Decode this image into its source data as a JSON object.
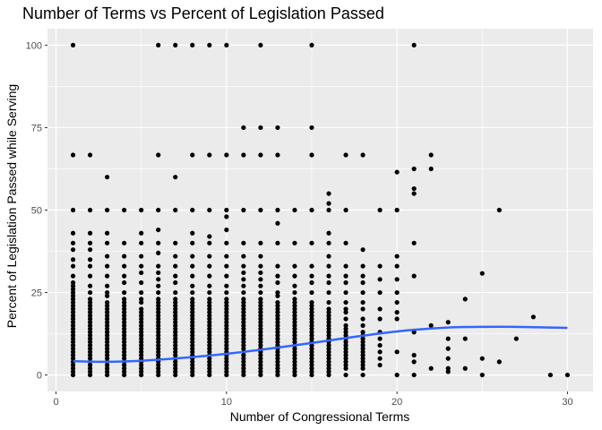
{
  "chart_data": {
    "type": "scatter",
    "title": "Number of Terms vs Percent of Legislation Passed",
    "xlabel": "Number of Congressional Terms",
    "ylabel": "Percent of Legislation Passed while Serving",
    "xlim": [
      -0.5,
      31.5
    ],
    "ylim": [
      -5,
      105
    ],
    "x_ticks": [
      0,
      10,
      20,
      30
    ],
    "y_ticks": [
      0,
      25,
      50,
      75,
      100
    ],
    "grid": true,
    "legend": "none",
    "colors": {
      "panel": "#ebebeb",
      "grid": "#ffffff",
      "points": "#000000",
      "smooth": "#3366ff",
      "tick_text": "#4d4d4d"
    },
    "columns": {
      "1": [
        0,
        1,
        2,
        3,
        4,
        5,
        6,
        7,
        8,
        9,
        10,
        11,
        12,
        13,
        14,
        15,
        16,
        17,
        18,
        19,
        20,
        21,
        22,
        23,
        24,
        25,
        26,
        27,
        28,
        30,
        33,
        35,
        38,
        40,
        43,
        50,
        66.7,
        100
      ],
      "2": [
        0,
        1,
        2,
        3,
        4,
        5,
        6,
        7,
        8,
        9,
        10,
        11,
        12,
        13,
        14,
        15,
        16,
        17,
        18,
        19,
        20,
        21,
        22,
        23,
        25,
        27,
        30,
        33,
        35,
        38,
        40,
        43,
        50,
        66.7
      ],
      "3": [
        0,
        1,
        2,
        3,
        4,
        5,
        6,
        7,
        8,
        9,
        10,
        11,
        12,
        13,
        14,
        15,
        16,
        17,
        18,
        19,
        20,
        21,
        22,
        24,
        25,
        27,
        30,
        33,
        36,
        40,
        43,
        50,
        60
      ],
      "4": [
        0,
        1,
        2,
        3,
        4,
        5,
        6,
        7,
        8,
        9,
        10,
        11,
        12,
        13,
        14,
        15,
        16,
        17,
        18,
        19,
        20,
        21,
        22,
        23,
        25,
        28,
        30,
        33,
        36,
        40,
        50
      ],
      "5": [
        0,
        1,
        2,
        3,
        4,
        5,
        6,
        7,
        8,
        9,
        10,
        11,
        12,
        13,
        14,
        15,
        16,
        17,
        18,
        19,
        20,
        22,
        23,
        25,
        28,
        31,
        33,
        36,
        40,
        43,
        50
      ],
      "6": [
        0,
        1,
        2,
        3,
        4,
        5,
        6,
        7,
        8,
        9,
        10,
        11,
        12,
        13,
        14,
        15,
        16,
        17,
        18,
        19,
        20,
        21,
        22,
        23,
        25,
        27,
        29,
        31,
        33,
        37,
        40,
        44,
        50,
        66.7,
        100
      ],
      "7": [
        0,
        1,
        2,
        3,
        4,
        5,
        6,
        7,
        8,
        9,
        10,
        11,
        12,
        13,
        14,
        15,
        16,
        17,
        18,
        19,
        20,
        21,
        22,
        23,
        25,
        28,
        30,
        33,
        36,
        40,
        50,
        60,
        100
      ],
      "8": [
        0,
        1,
        2,
        3,
        4,
        5,
        6,
        7,
        8,
        9,
        10,
        11,
        12,
        13,
        14,
        15,
        16,
        17,
        18,
        19,
        20,
        21,
        22,
        23,
        25,
        27,
        30,
        33,
        36,
        40,
        43,
        50,
        66.7,
        100
      ],
      "9": [
        0,
        1,
        2,
        3,
        4,
        5,
        6,
        7,
        8,
        9,
        10,
        11,
        12,
        13,
        14,
        15,
        16,
        17,
        18,
        19,
        20,
        21,
        22,
        23,
        25,
        27,
        30,
        33,
        36,
        40,
        42,
        50,
        66.7,
        100
      ],
      "10": [
        0,
        1,
        2,
        3,
        4,
        5,
        6,
        7,
        8,
        9,
        10,
        11,
        12,
        13,
        14,
        15,
        16,
        17,
        18,
        19,
        20,
        21,
        22,
        23,
        25,
        27,
        30,
        33,
        36,
        40,
        44,
        48,
        50,
        66.7,
        100
      ],
      "11": [
        0,
        1,
        2,
        3,
        4,
        5,
        6,
        7,
        8,
        9,
        10,
        11,
        12,
        13,
        14,
        15,
        16,
        17,
        18,
        19,
        20,
        21,
        22,
        23,
        25,
        27,
        29,
        31,
        33,
        36,
        40,
        50,
        66.7,
        75
      ],
      "12": [
        0,
        1,
        2,
        3,
        4,
        5,
        6,
        7,
        8,
        9,
        10,
        11,
        12,
        13,
        14,
        15,
        16,
        17,
        18,
        19,
        20,
        21,
        22,
        23,
        25,
        27,
        29,
        31,
        33,
        36,
        40,
        50,
        66.7,
        75,
        100
      ],
      "13": [
        0,
        1,
        2,
        3,
        4,
        5,
        6,
        7,
        8,
        9,
        10,
        11,
        12,
        13,
        14,
        15,
        16,
        17,
        18,
        19,
        20,
        21,
        22,
        24,
        25,
        28,
        30,
        33,
        40,
        46,
        50,
        66.7,
        75
      ],
      "14": [
        0,
        1,
        2,
        3,
        4,
        5,
        6,
        7,
        8,
        9,
        10,
        11,
        12,
        13,
        14,
        15,
        16,
        17,
        18,
        19,
        20,
        21,
        22,
        23,
        25,
        27,
        30,
        33,
        40,
        50
      ],
      "15": [
        0,
        1,
        2,
        3,
        4,
        5,
        6,
        7,
        8,
        9,
        10,
        11,
        12,
        13,
        14,
        15,
        16,
        17,
        18,
        19,
        20,
        21,
        22,
        25,
        28,
        30,
        33,
        40,
        50,
        66.7,
        75,
        100
      ],
      "16": [
        0,
        1,
        2,
        3,
        4,
        5,
        6,
        7,
        8,
        9,
        10,
        11,
        12,
        13,
        14,
        15,
        16,
        17,
        18,
        19,
        20,
        22,
        25,
        28,
        30,
        33,
        36,
        40,
        43,
        50,
        52,
        55
      ],
      "17": [
        0,
        2,
        3,
        4,
        5,
        6,
        7,
        8,
        9,
        10,
        11,
        12,
        13,
        14,
        15,
        17,
        19,
        20,
        22,
        25,
        28,
        30,
        33,
        40,
        50,
        66.7
      ],
      "18": [
        0,
        2,
        3,
        4,
        5,
        6,
        7,
        8,
        9,
        10,
        11,
        12,
        13,
        15,
        17,
        20,
        22,
        25,
        28,
        30,
        33,
        38,
        66.7
      ],
      "19": [
        3,
        5,
        7,
        9,
        11,
        13,
        17,
        20,
        25,
        29,
        33,
        50
      ],
      "20": [
        0,
        7,
        17,
        19,
        22,
        25,
        29,
        33,
        36,
        50,
        61.5
      ],
      "21": [
        0,
        4,
        6,
        13,
        30,
        40,
        55,
        56.5,
        62.5,
        100
      ],
      "22": [
        2,
        15,
        62.5,
        66.7
      ],
      "23": [
        1,
        2,
        5,
        8,
        11,
        16
      ],
      "24": [
        2,
        11,
        23
      ],
      "25": [
        0,
        5,
        30.8
      ],
      "26": [
        4,
        50
      ],
      "27": [
        11
      ],
      "28": [
        17.6
      ],
      "29": [
        0
      ],
      "30": [
        0
      ]
    },
    "smooth_line": {
      "x": [
        1,
        3,
        5,
        7,
        9,
        11,
        13,
        15,
        17,
        19,
        21,
        23,
        25,
        27,
        29,
        30
      ],
      "y": [
        4.2,
        4.0,
        4.3,
        5.0,
        5.9,
        7.0,
        8.3,
        9.7,
        11.2,
        12.6,
        13.7,
        14.4,
        14.6,
        14.6,
        14.4,
        14.3
      ]
    }
  }
}
